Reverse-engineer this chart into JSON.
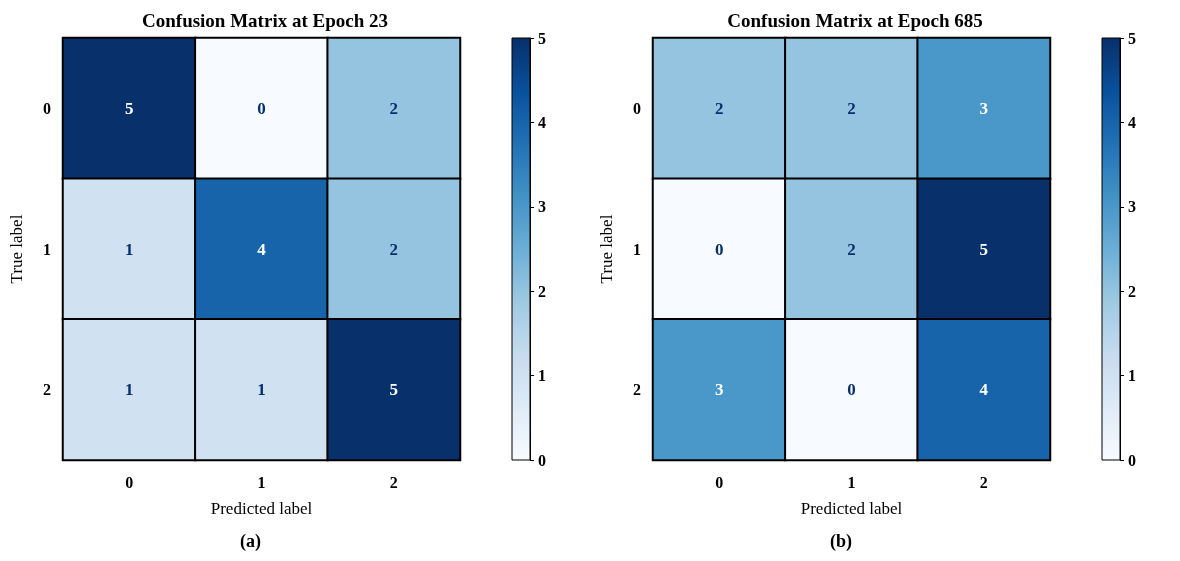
{
  "chart_data": [
    {
      "type": "heatmap",
      "title": "Confusion Matrix at Epoch 23",
      "xlabel": "Predicted label",
      "ylabel": "True label",
      "categories": [
        "0",
        "1",
        "2"
      ],
      "y_categories": [
        "0",
        "1",
        "2"
      ],
      "cells": [
        [
          5,
          0,
          2
        ],
        [
          1,
          4,
          2
        ],
        [
          1,
          1,
          5
        ]
      ],
      "data_labels": true,
      "clim": [
        0,
        5
      ],
      "cticks": [
        0,
        1,
        2,
        3,
        4,
        5
      ],
      "annotations": [
        "(a)"
      ]
    },
    {
      "type": "heatmap",
      "title": "Confusion Matrix at Epoch 685",
      "xlabel": "Predicted label",
      "ylabel": "True label",
      "categories": [
        "0",
        "1",
        "2"
      ],
      "y_categories": [
        "0",
        "1",
        "2"
      ],
      "cells": [
        [
          2,
          2,
          3
        ],
        [
          0,
          2,
          5
        ],
        [
          3,
          0,
          4
        ]
      ],
      "data_labels": true,
      "clim": [
        0,
        5
      ],
      "cticks": [
        0,
        1,
        2,
        3,
        4,
        5
      ],
      "annotations": [
        "(b)"
      ]
    }
  ]
}
